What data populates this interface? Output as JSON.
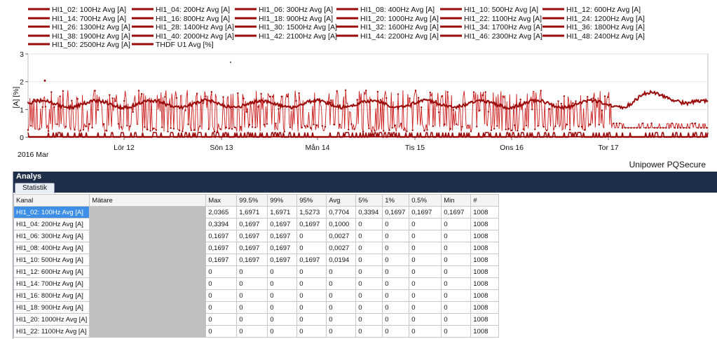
{
  "chart": {
    "legend": [
      "HI1_02: 100Hz Avg [A]",
      "HI1_04: 200Hz Avg [A]",
      "HI1_06: 300Hz Avg [A]",
      "HI1_08: 400Hz Avg [A]",
      "HI1_10: 500Hz Avg [A]",
      "HI1_12: 600Hz Avg [A]",
      "HI1_14: 700Hz Avg [A]",
      "HI1_16: 800Hz Avg [A]",
      "HI1_18: 900Hz Avg [A]",
      "HI1_20: 1000Hz Avg [A]",
      "HI1_22: 1100Hz Avg [A]",
      "HI1_24: 1200Hz Avg [A]",
      "HI1_26: 1300Hz Avg [A]",
      "HI1_28: 1400Hz Avg [A]",
      "HI1_30: 1500Hz Avg [A]",
      "HI1_32: 1600Hz Avg [A]",
      "HI1_34: 1700Hz Avg [A]",
      "HI1_36: 1800Hz Avg [A]",
      "HI1_38: 1900Hz Avg [A]",
      "HI1_40: 2000Hz Avg [A]",
      "HI1_42: 2100Hz Avg [A]",
      "HI1_44: 2200Hz Avg [A]",
      "HI1_46: 2300Hz Avg [A]",
      "HI1_48: 2400Hz Avg [A]",
      "HI1_50: 2500Hz Avg [A]",
      "THDF U1 Avg [%]"
    ],
    "y_axis_label": "[A] [%]",
    "y_ticks": [
      "0",
      "1",
      "2",
      "3"
    ],
    "x_ticks": [
      "Lör 12",
      "Sön 13",
      "Mån 14",
      "Tis 15",
      "Ons 16",
      "Tor 17"
    ],
    "x_sub_label": "2016 Mar",
    "series_color": "#9b0a0a",
    "point_color": "#cc1f1f"
  },
  "app": {
    "brand": "Unipower PQSecure"
  },
  "analysis": {
    "title": "Analys",
    "tab": "Statistik",
    "columns": [
      "Kanal",
      "Mätare",
      "Max",
      "99.5%",
      "99%",
      "95%",
      "Avg",
      "5%",
      "1%",
      "0.5%",
      "Min",
      "#"
    ],
    "rows": [
      [
        "HI1_02: 100Hz Avg [A]",
        "",
        "2,0365",
        "1,6971",
        "1,6971",
        "1,5273",
        "0,7704",
        "0,3394",
        "0,1697",
        "0,1697",
        "0,1697",
        "1008"
      ],
      [
        "HI1_04: 200Hz Avg [A]",
        "",
        "0,3394",
        "0,1697",
        "0,1697",
        "0,1697",
        "0,1000",
        "0",
        "0",
        "0",
        "0",
        "1008"
      ],
      [
        "HI1_06: 300Hz Avg [A]",
        "",
        "0,1697",
        "0,1697",
        "0,1697",
        "0",
        "0,0027",
        "0",
        "0",
        "0",
        "0",
        "1008"
      ],
      [
        "HI1_08: 400Hz Avg [A]",
        "",
        "0,1697",
        "0,1697",
        "0,1697",
        "0",
        "0,0027",
        "0",
        "0",
        "0",
        "0",
        "1008"
      ],
      [
        "HI1_10: 500Hz Avg [A]",
        "",
        "0,1697",
        "0,1697",
        "0,1697",
        "0,1697",
        "0,0194",
        "0",
        "0",
        "0",
        "0",
        "1008"
      ],
      [
        "HI1_12: 600Hz Avg [A]",
        "",
        "0",
        "0",
        "0",
        "0",
        "0",
        "0",
        "0",
        "0",
        "0",
        "1008"
      ],
      [
        "HI1_14: 700Hz Avg [A]",
        "",
        "0",
        "0",
        "0",
        "0",
        "0",
        "0",
        "0",
        "0",
        "0",
        "1008"
      ],
      [
        "HI1_16: 800Hz Avg [A]",
        "",
        "0",
        "0",
        "0",
        "0",
        "0",
        "0",
        "0",
        "0",
        "0",
        "1008"
      ],
      [
        "HI1_18: 900Hz Avg [A]",
        "",
        "0",
        "0",
        "0",
        "0",
        "0",
        "0",
        "0",
        "0",
        "0",
        "1008"
      ],
      [
        "HI1_20: 1000Hz Avg [A]",
        "",
        "0",
        "0",
        "0",
        "0",
        "0",
        "0",
        "0",
        "0",
        "0",
        "1008"
      ],
      [
        "HI1_22: 1100Hz Avg [A]",
        "",
        "0",
        "0",
        "0",
        "0",
        "0",
        "0",
        "0",
        "0",
        "0",
        "1008"
      ]
    ]
  }
}
